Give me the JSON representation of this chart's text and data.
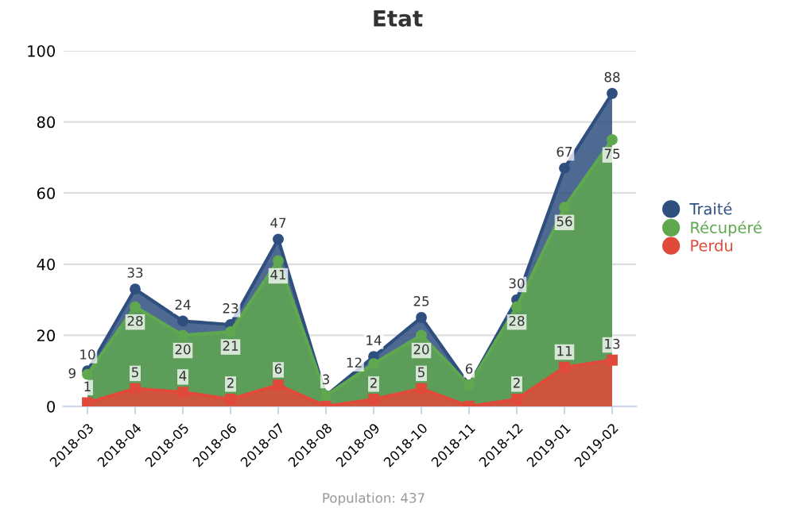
{
  "chart_data": {
    "type": "area",
    "title": "Etat",
    "categories": [
      "2018-03",
      "2018-04",
      "2018-05",
      "2018-06",
      "2018-07",
      "2018-08",
      "2018-09",
      "2018-10",
      "2018-11",
      "2018-12",
      "2019-01",
      "2019-02"
    ],
    "series": [
      {
        "name": "Traité",
        "color": "#2f4f7f",
        "marker": "circle",
        "values": [
          10,
          33,
          24,
          23,
          47,
          3,
          14,
          25,
          6,
          30,
          67,
          88
        ],
        "value_labels": [
          "10",
          "33",
          "24",
          "23",
          "47",
          "3",
          "14",
          "25",
          "6",
          "30",
          "67",
          "88"
        ]
      },
      {
        "name": "Récupéré",
        "color": "#5fa84f",
        "marker": "circle",
        "values": [
          9,
          28,
          20,
          21,
          41,
          3,
          12,
          20,
          6,
          28,
          56,
          75
        ],
        "value_labels": [
          "9",
          "28",
          "20",
          "21",
          "41",
          null,
          "12",
          "20",
          null,
          "28",
          "56",
          "75"
        ]
      },
      {
        "name": "Perdu",
        "color": "#e04a3a",
        "marker": "square",
        "values": [
          1,
          5,
          4,
          2,
          6,
          0,
          2,
          5,
          0,
          2,
          11,
          13
        ],
        "value_labels": [
          "1",
          "5",
          "4",
          "2",
          "6",
          null,
          "2",
          "5",
          null,
          "2",
          "11",
          "13"
        ]
      }
    ],
    "ylim": [
      0,
      100
    ],
    "yticks": [
      0,
      20,
      40,
      60,
      80,
      100
    ],
    "grid": "y",
    "legend": "right",
    "annotations": [
      "Population: 437"
    ]
  }
}
